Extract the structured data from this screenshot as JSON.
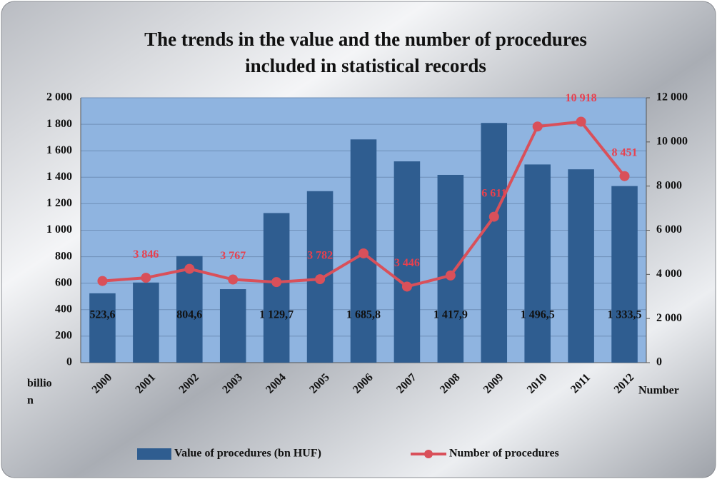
{
  "chart_data": {
    "type": "bar",
    "title": [
      "The trends in the value and the number of procedures",
      "included in statistical records"
    ],
    "y_label": [
      "billio",
      "n"
    ],
    "y2_label": "Number",
    "categories": [
      "2000",
      "2001",
      "2002",
      "2003",
      "2004",
      "2005",
      "2006",
      "2007",
      "2008",
      "2009",
      "2010",
      "2011",
      "2012"
    ],
    "series": [
      {
        "name": "Value of procedures (bn HUF)",
        "type": "bar",
        "color": "#2f5d90",
        "values": [
          523.6,
          605,
          804.6,
          555,
          1129.7,
          1295,
          1685.8,
          1520,
          1417.9,
          1810,
          1496.5,
          1460,
          1333.5
        ],
        "value_labels": [
          "523,6",
          null,
          "804,6",
          null,
          "1 129,7",
          null,
          "1 685,8",
          null,
          "1 417,9",
          null,
          "1 496,5",
          null,
          "1 333,5"
        ],
        "label_color": "#111111"
      },
      {
        "name": "Number of procedures",
        "type": "line",
        "axis": "y2",
        "color": "#d9505a",
        "values": [
          3700,
          3846,
          4250,
          3767,
          3650,
          3782,
          4950,
          3446,
          3950,
          6611,
          10700,
          10918,
          8451
        ],
        "value_labels": [
          null,
          "3 846",
          null,
          "3 767",
          null,
          "3 782",
          null,
          "3 446",
          null,
          "6 611",
          null,
          "10 918",
          "8 451"
        ],
        "label_color": "#e8404e"
      }
    ],
    "ylim": [
      0,
      2000
    ],
    "yticks": [
      0,
      200,
      400,
      600,
      800,
      {
        "value": 1000,
        "label": "1 000"
      },
      {
        "value": 1200,
        "label": "1 200"
      },
      {
        "value": 1400,
        "label": "1 400"
      },
      {
        "value": 1600,
        "label": "1 600"
      },
      {
        "value": 1800,
        "label": "1 800"
      },
      {
        "value": 2000,
        "label": "2 000"
      }
    ],
    "y2lim": [
      0,
      12000
    ],
    "y2ticks": [
      0,
      {
        "value": 2000,
        "label": "2 000"
      },
      {
        "value": 4000,
        "label": "4 000"
      },
      {
        "value": 6000,
        "label": "6 000"
      },
      {
        "value": 8000,
        "label": "8 000"
      },
      {
        "value": 10000,
        "label": "10 000"
      },
      {
        "value": 12000,
        "label": "12 000"
      }
    ],
    "grid": true,
    "plot_color": "#8fb4e0",
    "legend": "bottom"
  }
}
